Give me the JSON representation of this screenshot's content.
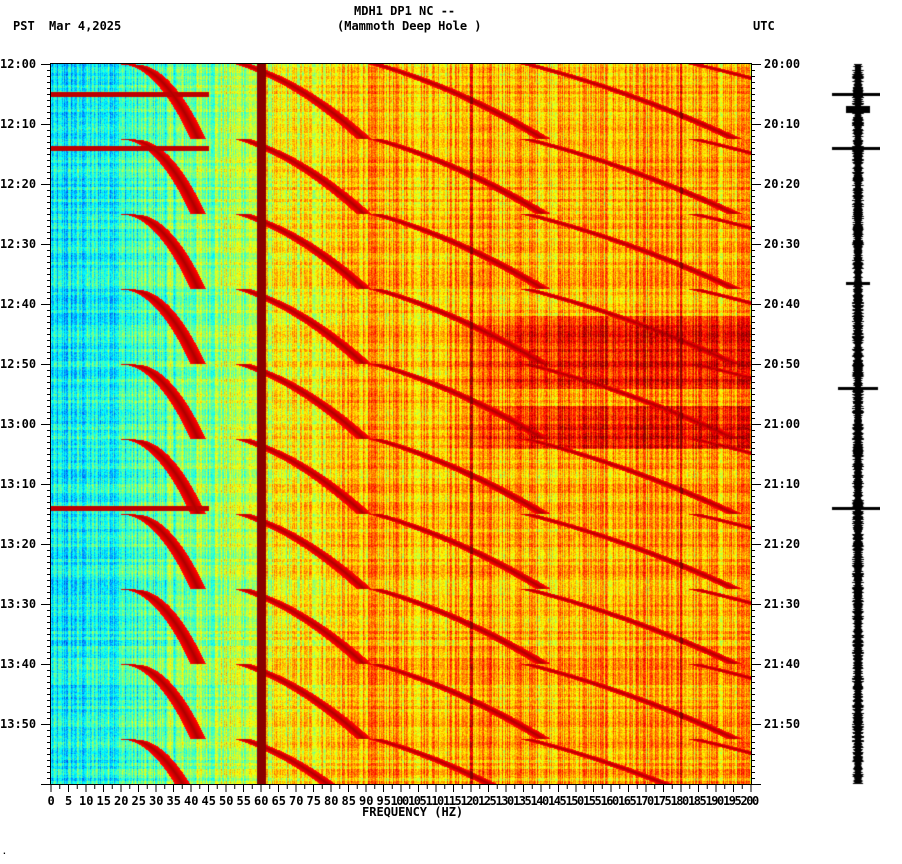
{
  "header": {
    "title": "MDH1 DP1 NC --",
    "subtitle": "(Mammoth Deep Hole )",
    "left_tz": "PST",
    "date": "Mar 4,2025",
    "right_tz": "UTC"
  },
  "chart_data": {
    "type": "heatmap",
    "title": "MDH1 DP1 NC -- (Mammoth Deep Hole )",
    "xlabel": "FREQUENCY (HZ)",
    "xlim": [
      0,
      200
    ],
    "x_ticks": [
      "0",
      "5",
      "10",
      "15",
      "20",
      "25",
      "30",
      "35",
      "40",
      "45",
      "50",
      "55",
      "60",
      "65",
      "70",
      "75",
      "80",
      "85",
      "90",
      "95",
      "100",
      "105",
      "110",
      "115",
      "120",
      "125",
      "130",
      "135",
      "140",
      "145",
      "150",
      "155",
      "160",
      "165",
      "170",
      "175",
      "180",
      "185",
      "190",
      "195",
      "200"
    ],
    "ylabel_left": "PST",
    "ylabel_right": "UTC",
    "ylim_minutes": [
      0,
      120
    ],
    "y_ticks_left": [
      "12:00",
      "12:10",
      "12:20",
      "12:30",
      "12:40",
      "12:50",
      "13:00",
      "13:10",
      "13:20",
      "13:30",
      "13:40",
      "13:50"
    ],
    "y_ticks_right": [
      "20:00",
      "20:10",
      "20:20",
      "20:30",
      "20:40",
      "20:50",
      "21:00",
      "21:10",
      "21:20",
      "21:30",
      "21:40",
      "21:50"
    ],
    "colormap": [
      "#0000c0",
      "#0080ff",
      "#00ffff",
      "#80ff80",
      "#ffff00",
      "#ff8000",
      "#ff0000",
      "#800000"
    ],
    "persistent_lines_hz": [
      60,
      120,
      180
    ],
    "strong_broadband_minutes": [
      5,
      14,
      74
    ],
    "high_energy_band_minutes": [
      [
        42,
        54
      ],
      [
        57,
        64
      ]
    ]
  }
}
